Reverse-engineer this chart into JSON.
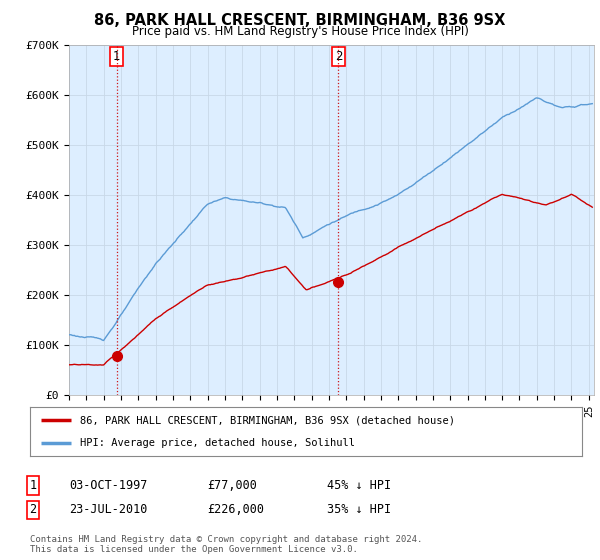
{
  "title": "86, PARK HALL CRESCENT, BIRMINGHAM, B36 9SX",
  "subtitle": "Price paid vs. HM Land Registry's House Price Index (HPI)",
  "ylim": [
    0,
    700000
  ],
  "xlim_start": 1995.0,
  "xlim_end": 2025.3,
  "yticks": [
    0,
    100000,
    200000,
    300000,
    400000,
    500000,
    600000,
    700000
  ],
  "ytick_labels": [
    "£0",
    "£100K",
    "£200K",
    "£300K",
    "£400K",
    "£500K",
    "£600K",
    "£700K"
  ],
  "transaction1_date": 1997.75,
  "transaction1_price": 77000,
  "transaction2_date": 2010.55,
  "transaction2_price": 226000,
  "hpi_color": "#5b9bd5",
  "price_color": "#cc0000",
  "dashed_color": "#cc0000",
  "bg_fill_color": "#ddeeff",
  "legend_label_price": "86, PARK HALL CRESCENT, BIRMINGHAM, B36 9SX (detached house)",
  "legend_label_hpi": "HPI: Average price, detached house, Solihull",
  "table_row1": [
    "1",
    "03-OCT-1997",
    "£77,000",
    "45% ↓ HPI"
  ],
  "table_row2": [
    "2",
    "23-JUL-2010",
    "£226,000",
    "35% ↓ HPI"
  ],
  "footnote": "Contains HM Land Registry data © Crown copyright and database right 2024.\nThis data is licensed under the Open Government Licence v3.0.",
  "background_color": "#ffffff",
  "grid_color": "#c8d8e8"
}
